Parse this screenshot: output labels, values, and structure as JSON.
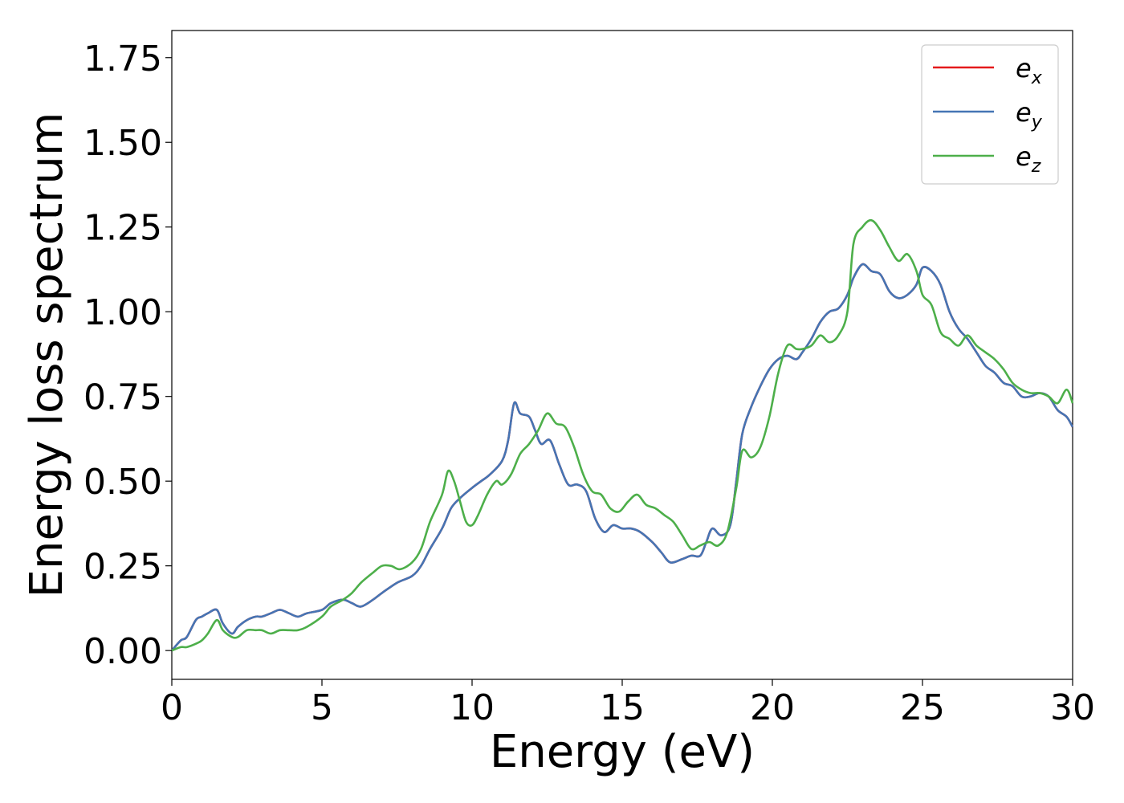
{
  "chart_data": {
    "type": "line",
    "xlabel": "Energy (eV)",
    "ylabel": "Energy loss spectrum",
    "xlim": [
      0,
      30
    ],
    "ylim": [
      -0.085,
      1.83
    ],
    "xticks": [
      0,
      5,
      10,
      15,
      20,
      25,
      30
    ],
    "xtick_labels": [
      "0",
      "5",
      "10",
      "15",
      "20",
      "25",
      "30"
    ],
    "yticks": [
      0.0,
      0.25,
      0.5,
      0.75,
      1.0,
      1.25,
      1.5,
      1.75
    ],
    "ytick_labels": [
      "0.00",
      "0.25",
      "0.50",
      "0.75",
      "1.00",
      "1.25",
      "1.50",
      "1.75"
    ],
    "grid": false,
    "legend_position": "top-right",
    "series": [
      {
        "name": "e_x",
        "legend_base": "e",
        "legend_sub": "x",
        "color": "#e41a1c",
        "x": [
          0,
          0.3,
          0.5,
          0.8,
          1.0,
          1.2,
          1.5,
          1.7,
          2.0,
          2.2,
          2.5,
          2.8,
          3.0,
          3.3,
          3.6,
          3.9,
          4.2,
          4.5,
          5.0,
          5.3,
          5.7,
          6.0,
          6.3,
          6.7,
          7.0,
          7.5,
          8.0,
          8.3,
          8.6,
          9.0,
          9.3,
          9.6,
          10.0,
          10.3,
          10.6,
          11.0,
          11.2,
          11.4,
          11.6,
          11.9,
          12.1,
          12.3,
          12.6,
          12.9,
          13.2,
          13.5,
          13.8,
          14.1,
          14.4,
          14.7,
          15.0,
          15.3,
          15.6,
          16.0,
          16.3,
          16.6,
          17.0,
          17.3,
          17.6,
          17.8,
          18.0,
          18.3,
          18.6,
          18.8,
          19.0,
          19.3,
          19.6,
          19.9,
          20.2,
          20.5,
          20.8,
          21.0,
          21.3,
          21.6,
          21.9,
          22.2,
          22.5,
          22.7,
          23.0,
          23.3,
          23.6,
          23.9,
          24.2,
          24.5,
          24.8,
          25.0,
          25.3,
          25.6,
          25.9,
          26.2,
          26.5,
          26.8,
          27.1,
          27.4,
          27.7,
          28.0,
          28.3,
          28.6,
          28.9,
          29.2,
          29.5,
          29.8,
          30.0
        ],
        "y": [
          0.0,
          0.03,
          0.04,
          0.09,
          0.1,
          0.11,
          0.12,
          0.08,
          0.05,
          0.07,
          0.09,
          0.1,
          0.1,
          0.11,
          0.12,
          0.11,
          0.1,
          0.11,
          0.12,
          0.14,
          0.15,
          0.14,
          0.13,
          0.15,
          0.17,
          0.2,
          0.22,
          0.25,
          0.3,
          0.36,
          0.42,
          0.45,
          0.48,
          0.5,
          0.52,
          0.56,
          0.62,
          0.73,
          0.7,
          0.69,
          0.65,
          0.61,
          0.62,
          0.55,
          0.49,
          0.49,
          0.47,
          0.39,
          0.35,
          0.37,
          0.36,
          0.36,
          0.35,
          0.32,
          0.29,
          0.26,
          0.27,
          0.28,
          0.28,
          0.32,
          0.36,
          0.34,
          0.37,
          0.5,
          0.64,
          0.72,
          0.78,
          0.83,
          0.86,
          0.87,
          0.86,
          0.88,
          0.92,
          0.97,
          1.0,
          1.01,
          1.05,
          1.1,
          1.14,
          1.12,
          1.11,
          1.06,
          1.04,
          1.05,
          1.08,
          1.13,
          1.12,
          1.08,
          1.0,
          0.95,
          0.92,
          0.88,
          0.84,
          0.82,
          0.79,
          0.78,
          0.75,
          0.75,
          0.76,
          0.75,
          0.71,
          0.69,
          0.66
        ]
      },
      {
        "name": "e_y",
        "legend_base": "e",
        "legend_sub": "y",
        "color": "#4575b4",
        "x": [
          0,
          0.3,
          0.5,
          0.8,
          1.0,
          1.2,
          1.5,
          1.7,
          2.0,
          2.2,
          2.5,
          2.8,
          3.0,
          3.3,
          3.6,
          3.9,
          4.2,
          4.5,
          5.0,
          5.3,
          5.7,
          6.0,
          6.3,
          6.7,
          7.0,
          7.5,
          8.0,
          8.3,
          8.6,
          9.0,
          9.3,
          9.6,
          10.0,
          10.3,
          10.6,
          11.0,
          11.2,
          11.4,
          11.6,
          11.9,
          12.1,
          12.3,
          12.6,
          12.9,
          13.2,
          13.5,
          13.8,
          14.1,
          14.4,
          14.7,
          15.0,
          15.3,
          15.6,
          16.0,
          16.3,
          16.6,
          17.0,
          17.3,
          17.6,
          17.8,
          18.0,
          18.3,
          18.6,
          18.8,
          19.0,
          19.3,
          19.6,
          19.9,
          20.2,
          20.5,
          20.8,
          21.0,
          21.3,
          21.6,
          21.9,
          22.2,
          22.5,
          22.7,
          23.0,
          23.3,
          23.6,
          23.9,
          24.2,
          24.5,
          24.8,
          25.0,
          25.3,
          25.6,
          25.9,
          26.2,
          26.5,
          26.8,
          27.1,
          27.4,
          27.7,
          28.0,
          28.3,
          28.6,
          28.9,
          29.2,
          29.5,
          29.8,
          30.0
        ],
        "y": [
          0.0,
          0.03,
          0.04,
          0.09,
          0.1,
          0.11,
          0.12,
          0.08,
          0.05,
          0.07,
          0.09,
          0.1,
          0.1,
          0.11,
          0.12,
          0.11,
          0.1,
          0.11,
          0.12,
          0.14,
          0.15,
          0.14,
          0.13,
          0.15,
          0.17,
          0.2,
          0.22,
          0.25,
          0.3,
          0.36,
          0.42,
          0.45,
          0.48,
          0.5,
          0.52,
          0.56,
          0.62,
          0.73,
          0.7,
          0.69,
          0.65,
          0.61,
          0.62,
          0.55,
          0.49,
          0.49,
          0.47,
          0.39,
          0.35,
          0.37,
          0.36,
          0.36,
          0.35,
          0.32,
          0.29,
          0.26,
          0.27,
          0.28,
          0.28,
          0.32,
          0.36,
          0.34,
          0.37,
          0.5,
          0.64,
          0.72,
          0.78,
          0.83,
          0.86,
          0.87,
          0.86,
          0.88,
          0.92,
          0.97,
          1.0,
          1.01,
          1.05,
          1.1,
          1.14,
          1.12,
          1.11,
          1.06,
          1.04,
          1.05,
          1.08,
          1.13,
          1.12,
          1.08,
          1.0,
          0.95,
          0.92,
          0.88,
          0.84,
          0.82,
          0.79,
          0.78,
          0.75,
          0.75,
          0.76,
          0.75,
          0.71,
          0.69,
          0.66
        ]
      },
      {
        "name": "e_z",
        "legend_base": "e",
        "legend_sub": "z",
        "color": "#4daf4a",
        "x": [
          0,
          0.3,
          0.5,
          0.8,
          1.0,
          1.2,
          1.5,
          1.7,
          2.0,
          2.2,
          2.5,
          2.8,
          3.0,
          3.3,
          3.6,
          3.9,
          4.2,
          4.5,
          5.0,
          5.3,
          5.7,
          6.0,
          6.3,
          6.7,
          7.0,
          7.3,
          7.6,
          8.0,
          8.3,
          8.6,
          9.0,
          9.2,
          9.4,
          9.6,
          9.8,
          10.0,
          10.2,
          10.5,
          10.8,
          11.0,
          11.3,
          11.6,
          11.9,
          12.2,
          12.5,
          12.8,
          13.1,
          13.4,
          13.7,
          14.0,
          14.3,
          14.6,
          14.9,
          15.2,
          15.5,
          15.8,
          16.1,
          16.4,
          16.7,
          17.0,
          17.3,
          17.6,
          17.9,
          18.2,
          18.5,
          18.8,
          19.0,
          19.3,
          19.6,
          19.9,
          20.2,
          20.5,
          20.8,
          21.0,
          21.3,
          21.6,
          21.9,
          22.2,
          22.5,
          22.7,
          23.0,
          23.3,
          23.6,
          23.9,
          24.2,
          24.5,
          24.8,
          25.0,
          25.3,
          25.6,
          25.9,
          26.2,
          26.5,
          26.8,
          27.1,
          27.4,
          27.7,
          28.0,
          28.3,
          28.6,
          28.9,
          29.2,
          29.5,
          29.8,
          30.0
        ],
        "y": [
          0.0,
          0.01,
          0.01,
          0.02,
          0.03,
          0.05,
          0.09,
          0.06,
          0.04,
          0.04,
          0.06,
          0.06,
          0.06,
          0.05,
          0.06,
          0.06,
          0.06,
          0.07,
          0.1,
          0.13,
          0.15,
          0.17,
          0.2,
          0.23,
          0.25,
          0.25,
          0.24,
          0.26,
          0.3,
          0.38,
          0.46,
          0.53,
          0.5,
          0.44,
          0.38,
          0.37,
          0.4,
          0.46,
          0.5,
          0.49,
          0.52,
          0.58,
          0.61,
          0.65,
          0.7,
          0.67,
          0.66,
          0.6,
          0.52,
          0.47,
          0.46,
          0.42,
          0.41,
          0.44,
          0.46,
          0.43,
          0.42,
          0.4,
          0.38,
          0.34,
          0.3,
          0.31,
          0.32,
          0.31,
          0.35,
          0.48,
          0.59,
          0.57,
          0.6,
          0.69,
          0.82,
          0.9,
          0.89,
          0.89,
          0.9,
          0.93,
          0.91,
          0.93,
          1.0,
          1.2,
          1.25,
          1.27,
          1.24,
          1.19,
          1.15,
          1.17,
          1.12,
          1.05,
          1.02,
          0.94,
          0.92,
          0.9,
          0.93,
          0.9,
          0.88,
          0.86,
          0.83,
          0.79,
          0.77,
          0.76,
          0.76,
          0.75,
          0.73,
          0.77,
          0.73
        ]
      }
    ]
  }
}
